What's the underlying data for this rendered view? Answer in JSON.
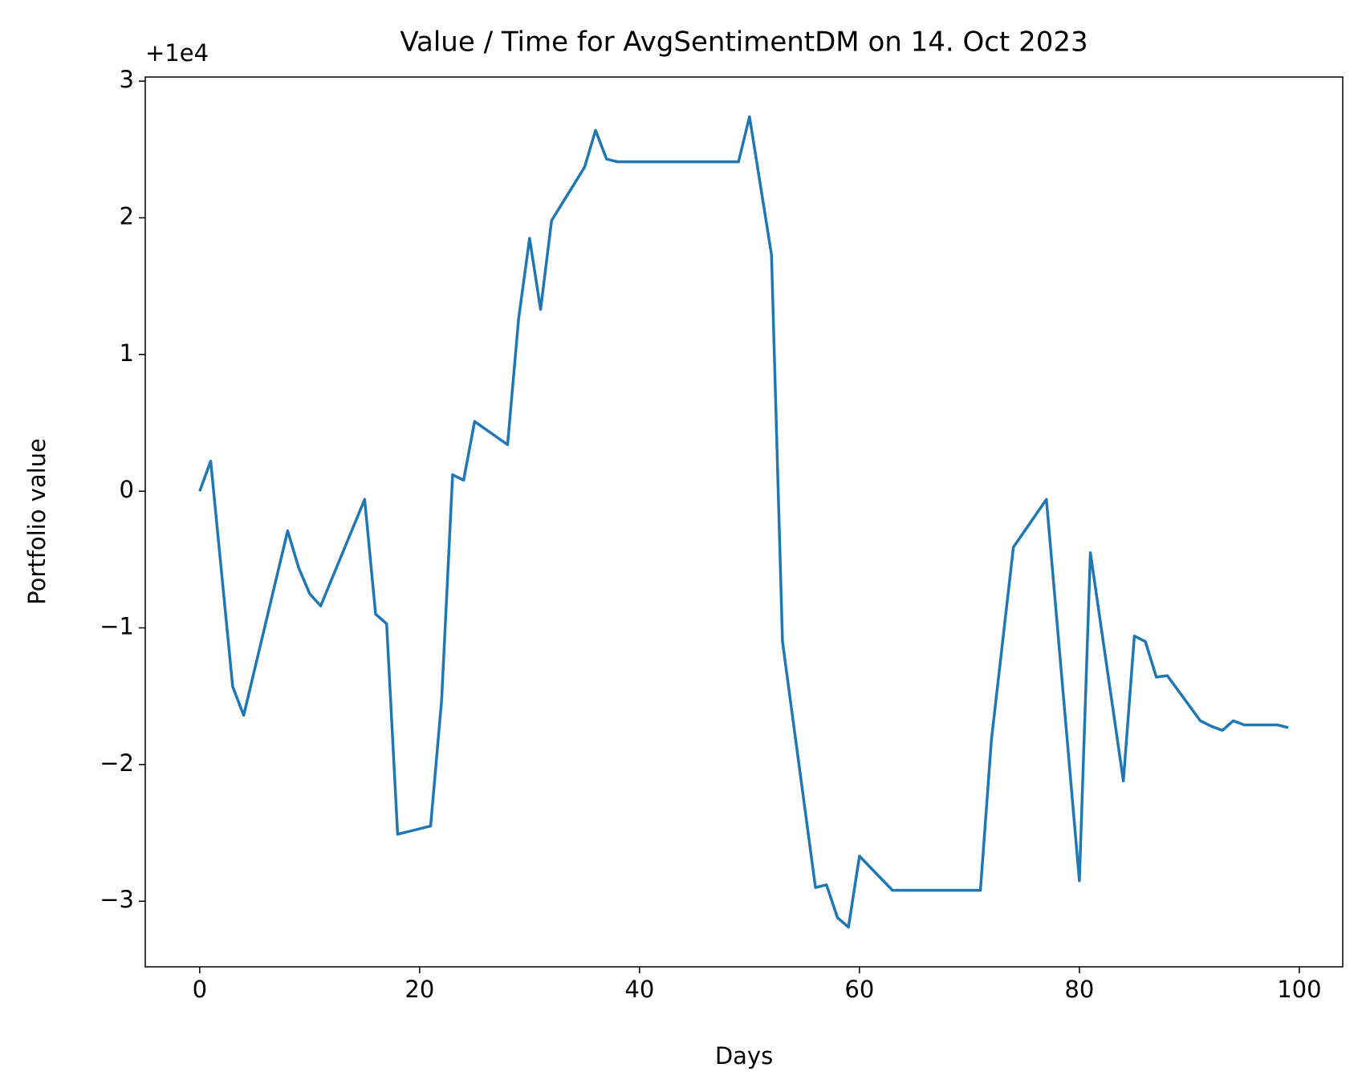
{
  "chart_data": {
    "type": "line",
    "title": "Value / Time for AvgSentimentDM on 14. Oct 2023",
    "x_label": "Days",
    "y_label": "Portfolio value",
    "y_offset_label": "+1e4",
    "x": [
      0,
      1,
      3,
      4,
      8,
      9,
      10,
      11,
      15,
      16,
      17,
      18,
      21,
      22,
      23,
      24,
      25,
      28,
      29,
      30,
      31,
      32,
      35,
      36,
      37,
      38,
      49,
      50,
      52,
      53,
      56,
      57,
      58,
      59,
      60,
      63,
      71,
      72,
      74,
      77,
      80,
      81,
      84,
      85,
      86,
      87,
      88,
      91,
      92,
      93,
      94,
      95,
      98,
      99
    ],
    "series": [
      {
        "name": "Portfolio value",
        "color": "#1f77b4",
        "values": [
          0,
          0.22,
          -1.43,
          -1.64,
          -0.29,
          -0.56,
          -0.75,
          -0.84,
          -0.06,
          -0.9,
          -0.97,
          -2.51,
          -2.45,
          -1.53,
          0.12,
          0.08,
          0.51,
          0.34,
          1.26,
          1.85,
          1.33,
          1.98,
          2.37,
          2.64,
          2.43,
          2.41,
          2.41,
          2.74,
          1.73,
          -1.1,
          -2.9,
          -2.88,
          -3.12,
          -3.19,
          -2.67,
          -2.92,
          -2.92,
          -1.82,
          -0.41,
          -0.06,
          -2.85,
          -0.45,
          -2.12,
          -1.06,
          -1.1,
          -1.36,
          -1.35,
          -1.68,
          -1.72,
          -1.75,
          -1.68,
          -1.71,
          -1.71,
          -1.73
        ]
      }
    ],
    "xlim": [
      -4.95,
      103.95
    ],
    "ylim": [
      -3.48,
      3.03
    ],
    "xticks": [
      0,
      20,
      40,
      60,
      80,
      100
    ],
    "yticks": [
      {
        "value": -3,
        "label": "−3"
      },
      {
        "value": -2,
        "label": "−2"
      },
      {
        "value": -1,
        "label": "−1"
      },
      0,
      1,
      2,
      3
    ],
    "grid": false
  }
}
